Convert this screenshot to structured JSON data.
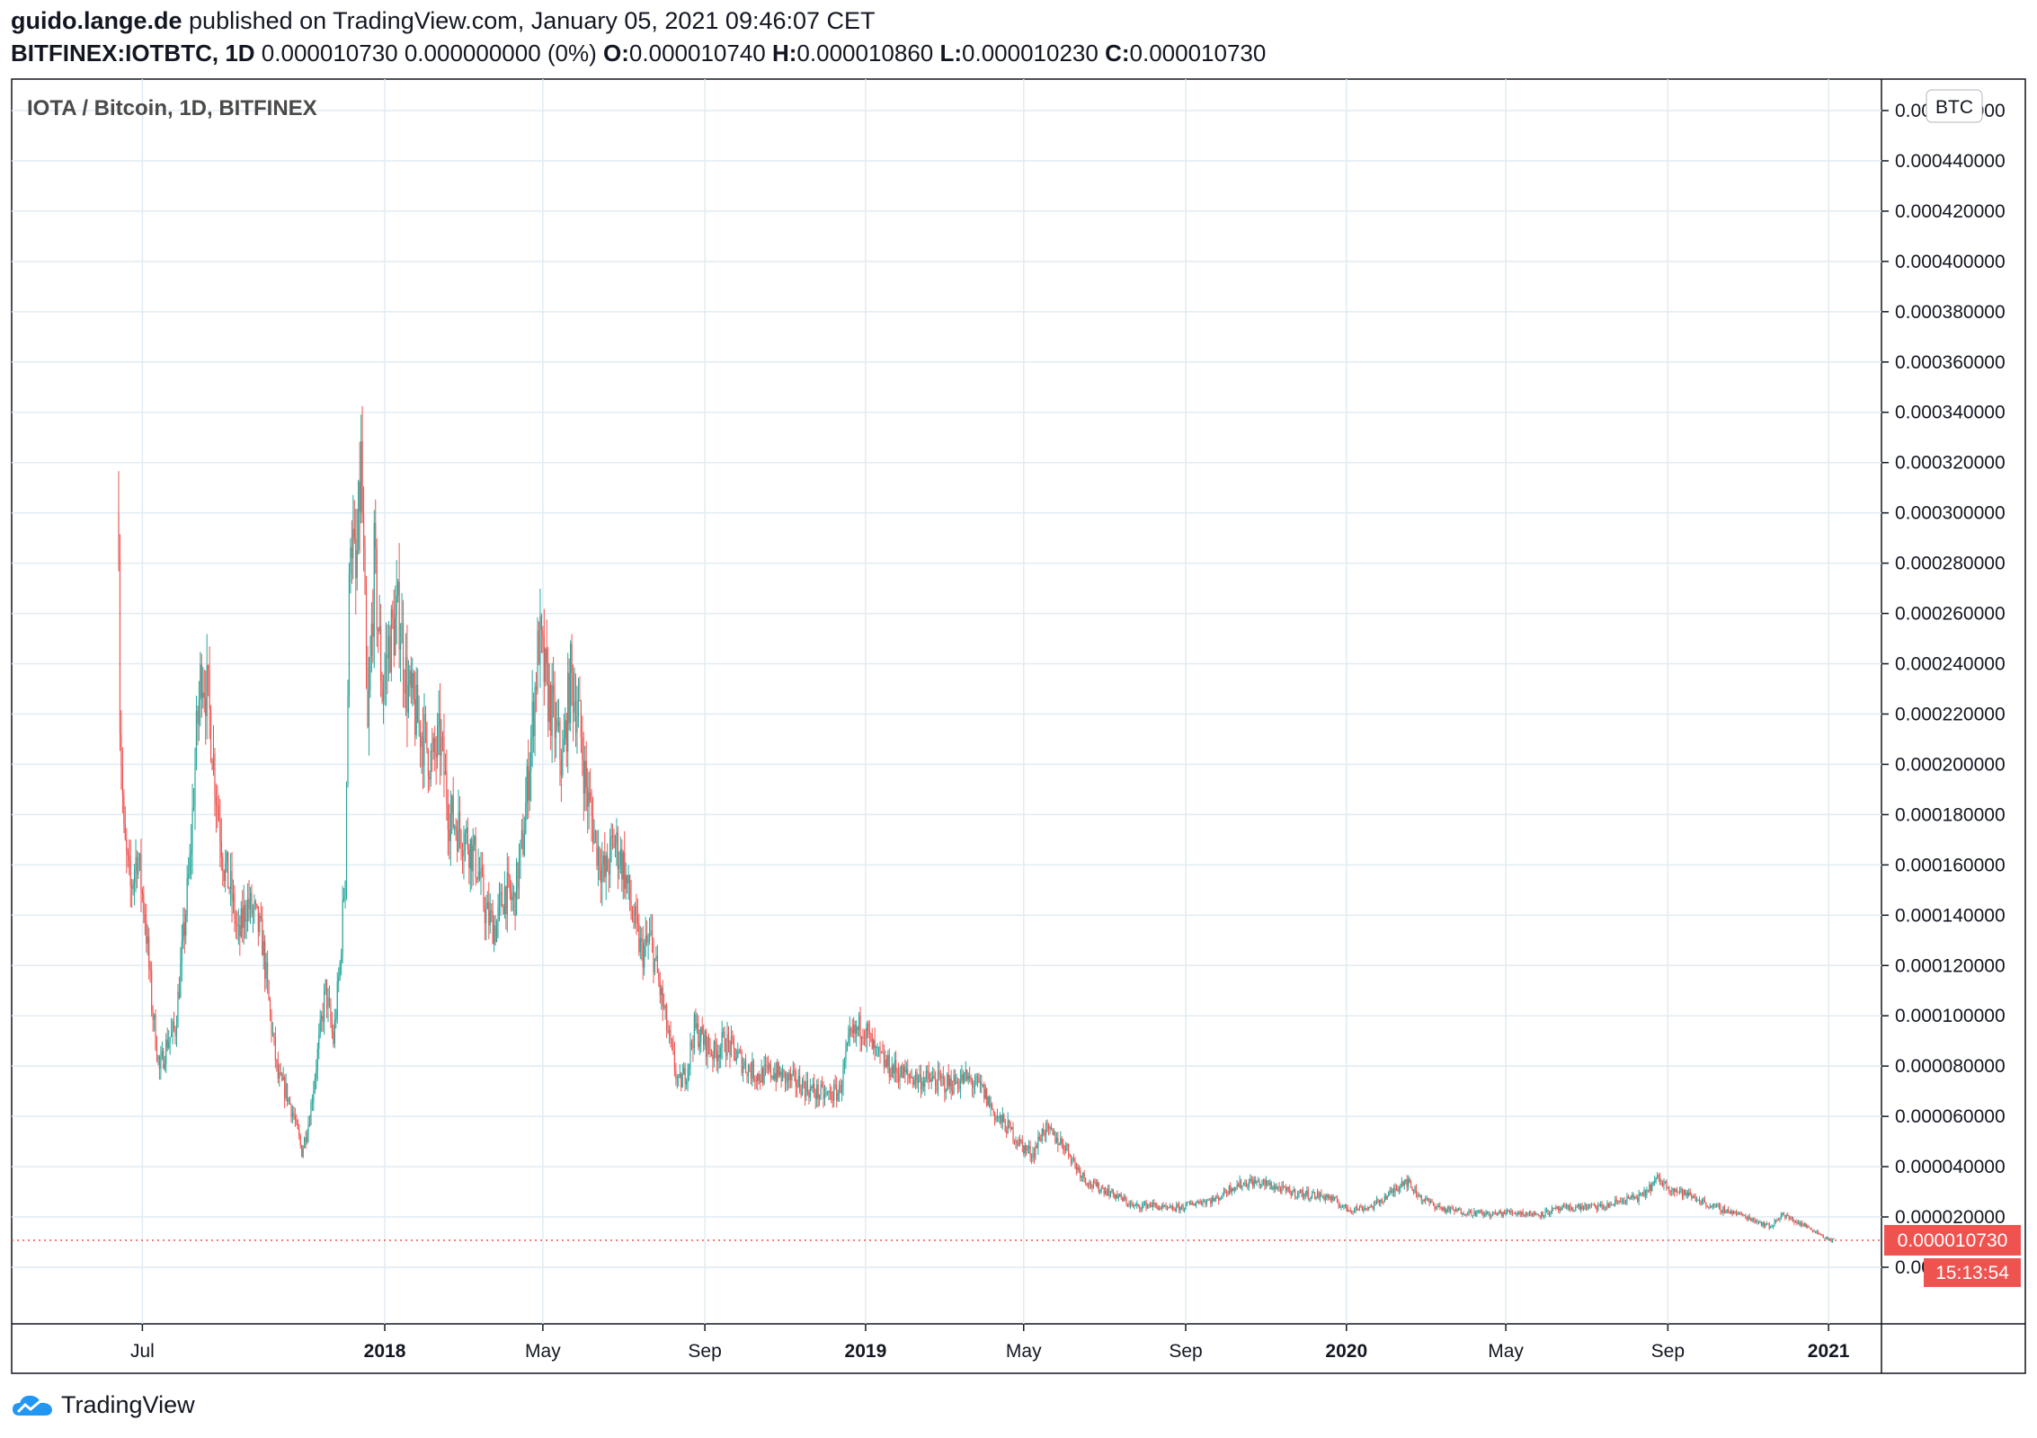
{
  "header": {
    "author": "guido.lange.de",
    "published": "published on TradingView.com, January 05, 2021 09:46:07 CET",
    "symbol": "BITFINEX:IOTBTC, 1D",
    "change": "0.000010730 0.000000000 (0%)",
    "o_label": "O:",
    "o_value": "0.000010740",
    "h_label": "H:",
    "h_value": "0.000010860",
    "l_label": "L:",
    "l_value": "0.000010230",
    "c_label": "C:",
    "c_value": "0.000010730"
  },
  "brand": {
    "name": "TradingView",
    "icon": "tradingview-cloud-icon"
  },
  "colors": {
    "up": "#26a69a",
    "down": "#ef5350",
    "grid": "#e1ecf2",
    "price_label": "#ef5350"
  },
  "chart_data": {
    "type": "candlestick",
    "title": "IOTA / Bitcoin, 1D, BITFINEX",
    "currency_badge": "BTC",
    "ylim": [
      0.0,
      0.00046
    ],
    "y_ticks": [
      "0.000460000",
      "0.000440000",
      "0.000420000",
      "0.000400000",
      "0.000380000",
      "0.000360000",
      "0.000340000",
      "0.000320000",
      "0.000300000",
      "0.000280000",
      "0.000260000",
      "0.000240000",
      "0.000220000",
      "0.000200000",
      "0.000180000",
      "0.000160000",
      "0.000140000",
      "0.000120000",
      "0.000100000",
      "0.000080000",
      "0.000060000",
      "0.000040000",
      "0.000020000",
      "0.000000000"
    ],
    "y_tick_values": [
      0.00046,
      0.00044,
      0.00042,
      0.0004,
      0.00038,
      0.00036,
      0.00034,
      0.00032,
      0.0003,
      0.00028,
      0.00026,
      0.00024,
      0.00022,
      0.0002,
      0.00018,
      0.00016,
      0.00014,
      0.00012,
      0.0001,
      8e-05,
      6e-05,
      4e-05,
      2e-05,
      0.0
    ],
    "x_range": [
      "2017-06-13",
      "2021-01-05"
    ],
    "x_ticks": [
      {
        "label": "Jul",
        "date": "2017-07-01",
        "bold": false
      },
      {
        "label": "2018",
        "date": "2018-01-01",
        "bold": true
      },
      {
        "label": "May",
        "date": "2018-05-01",
        "bold": false
      },
      {
        "label": "Sep",
        "date": "2018-09-01",
        "bold": false
      },
      {
        "label": "2019",
        "date": "2019-01-01",
        "bold": true
      },
      {
        "label": "May",
        "date": "2019-05-01",
        "bold": false
      },
      {
        "label": "Sep",
        "date": "2019-09-01",
        "bold": false
      },
      {
        "label": "2020",
        "date": "2020-01-01",
        "bold": true
      },
      {
        "label": "May",
        "date": "2020-05-01",
        "bold": false
      },
      {
        "label": "Sep",
        "date": "2020-09-01",
        "bold": false
      },
      {
        "label": "2021",
        "date": "2021-01-01",
        "bold": true
      }
    ],
    "last_price": "0.000010730",
    "last_price_value": 1.073e-05,
    "countdown": "15:13:54",
    "closes": [
      [
        "2017-06-13",
        0.0003
      ],
      [
        "2017-06-14",
        0.00022
      ],
      [
        "2017-06-17",
        0.00017
      ],
      [
        "2017-06-22",
        0.00015
      ],
      [
        "2017-06-27",
        0.000165
      ],
      [
        "2017-07-03",
        0.00014
      ],
      [
        "2017-07-08",
        0.000105
      ],
      [
        "2017-07-14",
        7.8e-05
      ],
      [
        "2017-07-20",
        9e-05
      ],
      [
        "2017-07-26",
        9.5e-05
      ],
      [
        "2017-08-01",
        0.00013
      ],
      [
        "2017-08-06",
        0.00016
      ],
      [
        "2017-08-11",
        0.00021
      ],
      [
        "2017-08-15",
        0.00024
      ],
      [
        "2017-08-20",
        0.000225
      ],
      [
        "2017-08-26",
        0.00019
      ],
      [
        "2017-09-01",
        0.00016
      ],
      [
        "2017-09-06",
        0.00015
      ],
      [
        "2017-09-12",
        0.00013
      ],
      [
        "2017-09-18",
        0.000145
      ],
      [
        "2017-09-24",
        0.00014
      ],
      [
        "2017-09-30",
        0.00013
      ],
      [
        "2017-10-06",
        0.0001
      ],
      [
        "2017-10-12",
        7.5e-05
      ],
      [
        "2017-10-18",
        7e-05
      ],
      [
        "2017-10-24",
        6e-05
      ],
      [
        "2017-10-30",
        4.6e-05
      ],
      [
        "2017-11-05",
        6e-05
      ],
      [
        "2017-11-11",
        8.5e-05
      ],
      [
        "2017-11-17",
        0.00011
      ],
      [
        "2017-11-23",
        9e-05
      ],
      [
        "2017-11-28",
        0.00012
      ],
      [
        "2017-12-02",
        0.00016
      ],
      [
        "2017-12-06",
        0.0003
      ],
      [
        "2017-12-10",
        0.00027
      ],
      [
        "2017-12-14",
        0.00032
      ],
      [
        "2017-12-19",
        0.00021
      ],
      [
        "2017-12-24",
        0.00028
      ],
      [
        "2017-12-30",
        0.00023
      ],
      [
        "2018-01-05",
        0.00025
      ],
      [
        "2018-01-12",
        0.00026
      ],
      [
        "2018-01-18",
        0.00023
      ],
      [
        "2018-01-24",
        0.00022
      ],
      [
        "2018-01-31",
        0.00021
      ],
      [
        "2018-02-06",
        0.0002
      ],
      [
        "2018-02-12",
        0.00021
      ],
      [
        "2018-02-19",
        0.00018
      ],
      [
        "2018-02-26",
        0.000175
      ],
      [
        "2018-03-05",
        0.00017
      ],
      [
        "2018-03-12",
        0.00016
      ],
      [
        "2018-03-19",
        0.00014
      ],
      [
        "2018-03-26",
        0.000135
      ],
      [
        "2018-04-02",
        0.00015
      ],
      [
        "2018-04-09",
        0.000145
      ],
      [
        "2018-04-16",
        0.00017
      ],
      [
        "2018-04-22",
        0.00021
      ],
      [
        "2018-04-28",
        0.00025
      ],
      [
        "2018-05-04",
        0.00023
      ],
      [
        "2018-05-10",
        0.000215
      ],
      [
        "2018-05-16",
        0.0002
      ],
      [
        "2018-05-22",
        0.000235
      ],
      [
        "2018-05-28",
        0.00022
      ],
      [
        "2018-06-03",
        0.00019
      ],
      [
        "2018-06-10",
        0.00017
      ],
      [
        "2018-06-17",
        0.000155
      ],
      [
        "2018-06-24",
        0.00017
      ],
      [
        "2018-07-01",
        0.00016
      ],
      [
        "2018-07-08",
        0.00014
      ],
      [
        "2018-07-15",
        0.000125
      ],
      [
        "2018-07-22",
        0.00013
      ],
      [
        "2018-07-29",
        0.00011
      ],
      [
        "2018-08-05",
        9e-05
      ],
      [
        "2018-08-12",
        7.2e-05
      ],
      [
        "2018-08-18",
        7.8e-05
      ],
      [
        "2018-08-24",
        9.5e-05
      ],
      [
        "2018-08-31",
        9e-05
      ],
      [
        "2018-09-08",
        8.5e-05
      ],
      [
        "2018-09-16",
        9e-05
      ],
      [
        "2018-09-24",
        8.5e-05
      ],
      [
        "2018-10-02",
        8e-05
      ],
      [
        "2018-10-12",
        7.6e-05
      ],
      [
        "2018-10-22",
        7.8e-05
      ],
      [
        "2018-11-02",
        7.5e-05
      ],
      [
        "2018-11-12",
        7.3e-05
      ],
      [
        "2018-11-22",
        7e-05
      ],
      [
        "2018-12-02",
        6.8e-05
      ],
      [
        "2018-12-12",
        7e-05
      ],
      [
        "2018-12-20",
        9e-05
      ],
      [
        "2018-12-30",
        9.7e-05
      ],
      [
        "2019-01-08",
        8.5e-05
      ],
      [
        "2019-01-18",
        8e-05
      ],
      [
        "2019-01-28",
        7.7e-05
      ],
      [
        "2019-02-10",
        7.5e-05
      ],
      [
        "2019-02-22",
        7.4e-05
      ],
      [
        "2019-03-06",
        7.3e-05
      ],
      [
        "2019-03-18",
        7.5e-05
      ],
      [
        "2019-03-30",
        7.1e-05
      ],
      [
        "2019-04-10",
        6e-05
      ],
      [
        "2019-04-20",
        5.5e-05
      ],
      [
        "2019-04-30",
        4.8e-05
      ],
      [
        "2019-05-08",
        4.5e-05
      ],
      [
        "2019-05-16",
        5.5e-05
      ],
      [
        "2019-05-24",
        5.2e-05
      ],
      [
        "2019-06-02",
        4.8e-05
      ],
      [
        "2019-06-10",
        4e-05
      ],
      [
        "2019-06-20",
        3.3e-05
      ],
      [
        "2019-07-01",
        3.1e-05
      ],
      [
        "2019-07-12",
        2.8e-05
      ],
      [
        "2019-07-24",
        2.4e-05
      ],
      [
        "2019-08-05",
        2.5e-05
      ],
      [
        "2019-08-18",
        2.3e-05
      ],
      [
        "2019-08-30",
        2.4e-05
      ],
      [
        "2019-09-10",
        2.6e-05
      ],
      [
        "2019-09-24",
        2.7e-05
      ],
      [
        "2019-10-06",
        3.2e-05
      ],
      [
        "2019-10-20",
        3.4e-05
      ],
      [
        "2019-11-02",
        3.3e-05
      ],
      [
        "2019-11-18",
        3e-05
      ],
      [
        "2019-12-02",
        2.9e-05
      ],
      [
        "2019-12-18",
        2.8e-05
      ],
      [
        "2020-01-02",
        2.3e-05
      ],
      [
        "2020-01-20",
        2.4e-05
      ],
      [
        "2020-02-05",
        3e-05
      ],
      [
        "2020-02-14",
        3.5e-05
      ],
      [
        "2020-02-28",
        2.7e-05
      ],
      [
        "2020-03-15",
        2.3e-05
      ],
      [
        "2020-04-01",
        2.2e-05
      ],
      [
        "2020-04-20",
        2.1e-05
      ],
      [
        "2020-05-05",
        2.2e-05
      ],
      [
        "2020-05-25",
        2.1e-05
      ],
      [
        "2020-06-10",
        2.3e-05
      ],
      [
        "2020-06-28",
        2.4e-05
      ],
      [
        "2020-07-15",
        2.4e-05
      ],
      [
        "2020-07-30",
        2.7e-05
      ],
      [
        "2020-08-12",
        2.8e-05
      ],
      [
        "2020-08-24",
        3.5e-05
      ],
      [
        "2020-09-05",
        3.1e-05
      ],
      [
        "2020-09-20",
        2.8e-05
      ],
      [
        "2020-10-05",
        2.4e-05
      ],
      [
        "2020-10-20",
        2.2e-05
      ],
      [
        "2020-11-05",
        1.9e-05
      ],
      [
        "2020-11-18",
        1.6e-05
      ],
      [
        "2020-11-26",
        2.1e-05
      ],
      [
        "2020-12-08",
        1.8e-05
      ],
      [
        "2020-12-20",
        1.5e-05
      ],
      [
        "2021-01-01",
        1.1e-05
      ],
      [
        "2021-01-05",
        1.073e-05
      ]
    ]
  }
}
